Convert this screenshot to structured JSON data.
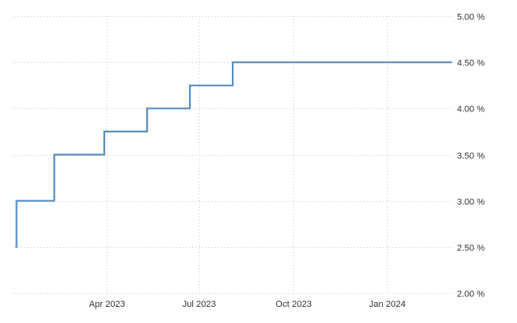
{
  "chart_data": {
    "type": "line",
    "step": true,
    "title": "",
    "xlabel": "",
    "ylabel": "",
    "x_ticks": [
      {
        "date": "2023-04-01",
        "label": "Apr 2023"
      },
      {
        "date": "2023-07-01",
        "label": "Jul 2023"
      },
      {
        "date": "2023-10-01",
        "label": "Oct 2023"
      },
      {
        "date": "2024-01-01",
        "label": "Jan 2024"
      }
    ],
    "y_ticks": [
      {
        "value": 2.0,
        "label": "2.00 %"
      },
      {
        "value": 2.5,
        "label": "2.50 %"
      },
      {
        "value": 3.0,
        "label": "3.00 %"
      },
      {
        "value": 3.5,
        "label": "3.50 %"
      },
      {
        "value": 4.0,
        "label": "4.00 %"
      },
      {
        "value": 4.5,
        "label": "4.50 %"
      },
      {
        "value": 5.0,
        "label": "5.00 %"
      }
    ],
    "xlim": [
      "2023-01-01",
      "2024-03-07"
    ],
    "ylim": [
      2.0,
      5.0
    ],
    "grid": true,
    "y_axis_position": "right",
    "series": [
      {
        "color": "#5b8fc3",
        "points": [
          {
            "x": "2023-01-02",
            "y": 2.5
          },
          {
            "x": "2023-01-03",
            "y": 3.0
          },
          {
            "x": "2023-02-09",
            "y": 3.5
          },
          {
            "x": "2023-03-30",
            "y": 3.75
          },
          {
            "x": "2023-05-11",
            "y": 4.0
          },
          {
            "x": "2023-06-22",
            "y": 4.25
          },
          {
            "x": "2023-08-03",
            "y": 4.5
          },
          {
            "x": "2024-03-05",
            "y": 4.5
          }
        ]
      }
    ]
  }
}
